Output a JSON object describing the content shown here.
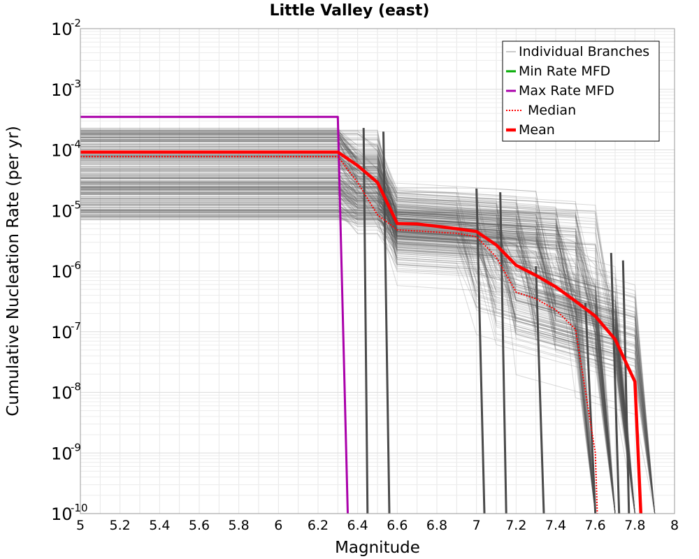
{
  "chart_data": {
    "type": "line",
    "title": "Little Valley (east)",
    "xlabel": "Magnitude",
    "ylabel": "Cumulative Nucleation Rate (per yr)",
    "xlim": [
      5,
      8
    ],
    "ylim": [
      1e-10,
      0.01
    ],
    "yscale": "log",
    "grid": true,
    "legend_position": "top-right",
    "x_ticks": [
      "5",
      "5.2",
      "5.4",
      "5.6",
      "5.8",
      "6",
      "6.2",
      "6.4",
      "6.6",
      "6.8",
      "7",
      "7.2",
      "7.4",
      "7.6",
      "7.8",
      "8"
    ],
    "y_ticks": [
      {
        "base": "10",
        "exp": "-10"
      },
      {
        "base": "10",
        "exp": "-9"
      },
      {
        "base": "10",
        "exp": "-8"
      },
      {
        "base": "10",
        "exp": "-7"
      },
      {
        "base": "10",
        "exp": "-6"
      },
      {
        "base": "10",
        "exp": "-5"
      },
      {
        "base": "10",
        "exp": "-4"
      },
      {
        "base": "10",
        "exp": "-3"
      },
      {
        "base": "10",
        "exp": "-2"
      }
    ],
    "series": [
      {
        "name": "Individual Branches",
        "color": "#505050",
        "style": "thin",
        "envelope": {
          "rate_min": 7e-06,
          "rate_max": 0.00023,
          "count": 300
        }
      },
      {
        "name": "Min Rate MFD",
        "color": "#00aa00",
        "style": "solid",
        "x": [],
        "y": []
      },
      {
        "name": "Max Rate MFD",
        "color": "#aa00aa",
        "style": "solid",
        "x": [
          5.0,
          6.3,
          6.35
        ],
        "y": [
          0.00035,
          0.00035,
          1e-10
        ]
      },
      {
        "name": "Median",
        "color": "#ff0000",
        "style": "dotted",
        "x": [
          5.0,
          6.3,
          6.4,
          6.5,
          6.6,
          6.7,
          6.8,
          6.9,
          7.0,
          7.1,
          7.2,
          7.3,
          7.4,
          7.5,
          7.6,
          7.61
        ],
        "y": [
          7.7e-05,
          7.7e-05,
          2.9e-05,
          8.5e-06,
          4.8e-06,
          4.6e-06,
          4.4e-06,
          4.2e-06,
          3.7e-06,
          1.7e-06,
          4.5e-07,
          3.5e-07,
          2.3e-07,
          1.1e-07,
          1e-09,
          1e-10
        ]
      },
      {
        "name": "Mean",
        "color": "#ff0000",
        "style": "thick",
        "x": [
          5.0,
          6.3,
          6.4,
          6.5,
          6.6,
          6.7,
          6.8,
          6.9,
          7.0,
          7.1,
          7.2,
          7.3,
          7.4,
          7.5,
          7.6,
          7.7,
          7.8,
          7.83
        ],
        "y": [
          9.2e-05,
          9.2e-05,
          5.5e-05,
          2.9e-05,
          6.1e-06,
          6e-06,
          5.5e-06,
          5e-06,
          4.5e-06,
          2.7e-06,
          1.25e-06,
          8.5e-07,
          5.5e-07,
          3.2e-07,
          1.8e-07,
          7.5e-08,
          1.5e-08,
          1e-10
        ]
      }
    ]
  }
}
